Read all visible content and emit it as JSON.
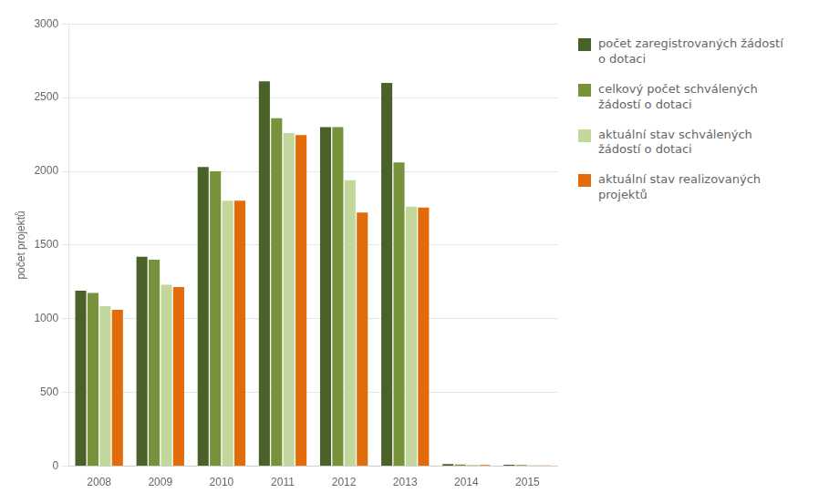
{
  "chart_data": {
    "type": "bar",
    "categories": [
      "2008",
      "2009",
      "2010",
      "2011",
      "2012",
      "2013",
      "2014",
      "2015"
    ],
    "series": [
      {
        "name": "počet zaregistrovaných žádostí\no dotaci",
        "color": "#4a6229",
        "values": [
          1190,
          1420,
          2030,
          2610,
          2300,
          2600,
          15,
          10
        ]
      },
      {
        "name": "celkový počet schválených\nžádostí o dotaci",
        "color": "#76933c",
        "values": [
          1175,
          1400,
          2000,
          2360,
          2300,
          2060,
          12,
          8
        ]
      },
      {
        "name": "aktuální stav schválených\nžádostí o dotaci",
        "color": "#c3d69b",
        "values": [
          1085,
          1230,
          1800,
          2260,
          1940,
          1760,
          10,
          7
        ]
      },
      {
        "name": "aktuální stav realizovaných\nprojektů",
        "color": "#e26b0a",
        "values": [
          1060,
          1215,
          1800,
          2245,
          1720,
          1755,
          8,
          5
        ]
      }
    ],
    "ylabel": "počet projektů",
    "ylim": [
      0,
      3000
    ],
    "yticks": [
      0,
      500,
      1000,
      1500,
      2000,
      2500,
      3000
    ],
    "grid": true,
    "legend": "right"
  }
}
